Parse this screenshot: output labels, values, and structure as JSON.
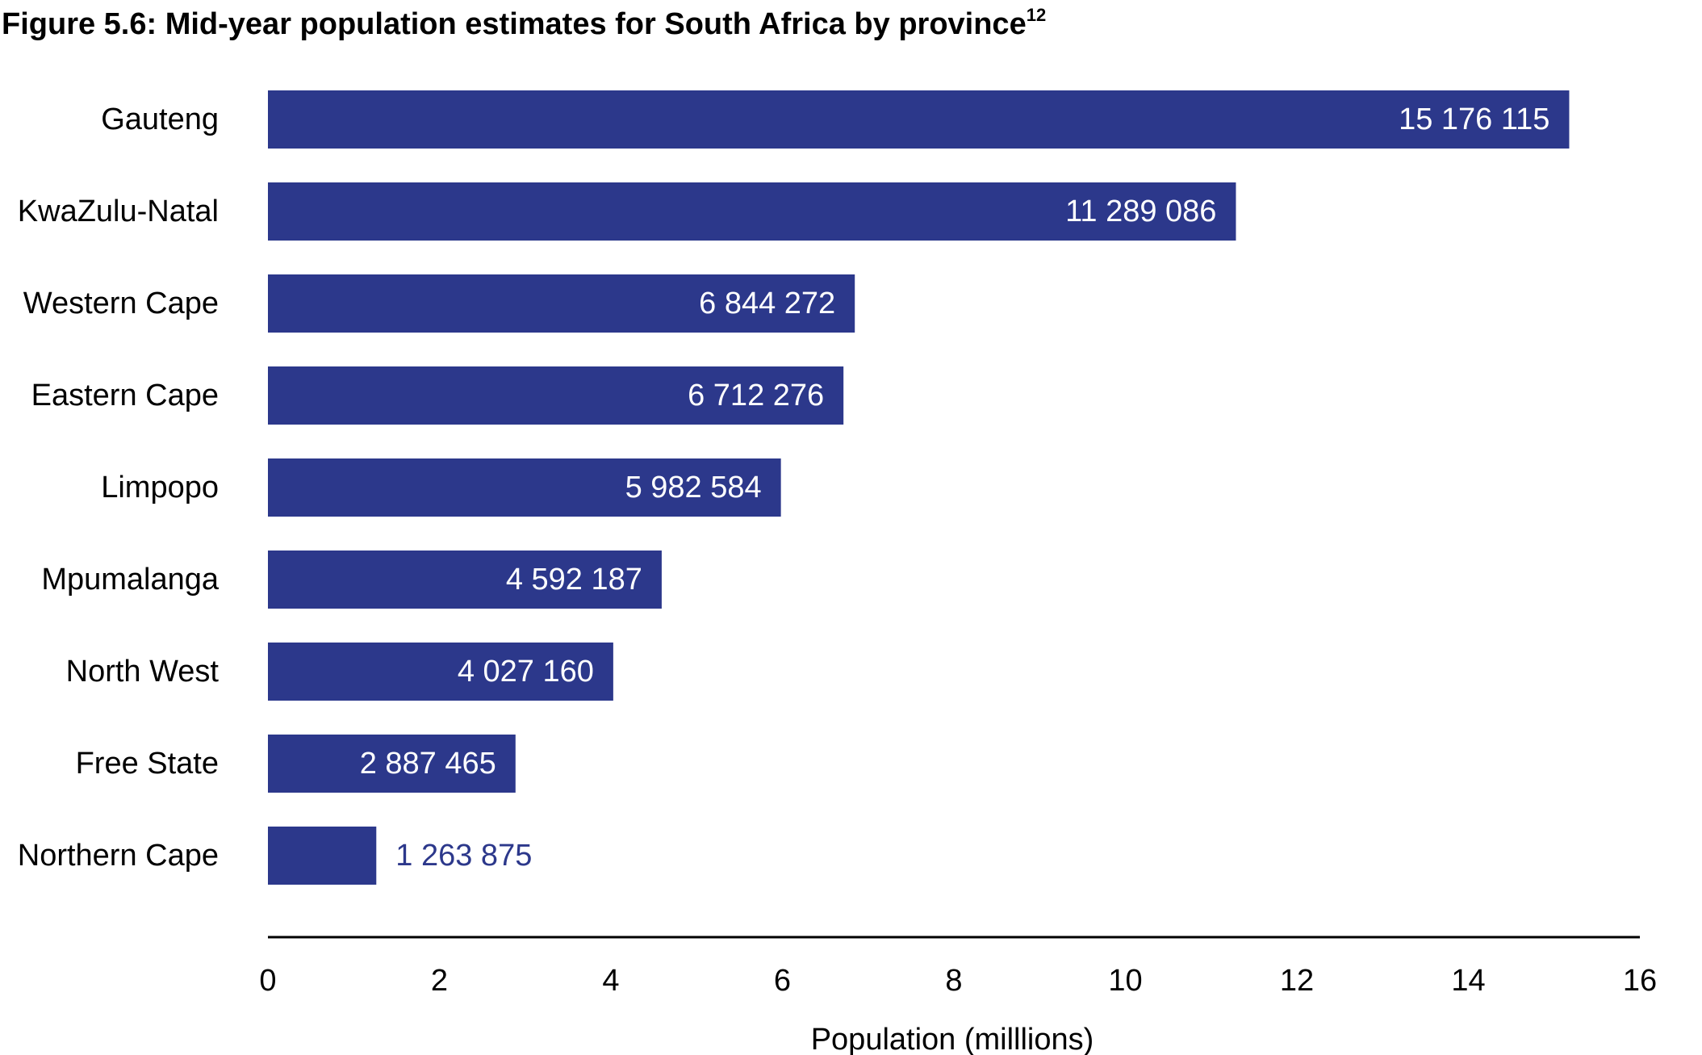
{
  "chart_data": {
    "type": "bar",
    "orientation": "horizontal",
    "title": "Figure 5.6: Mid-year population estimates for South Africa by province",
    "title_footnote": "12",
    "categories": [
      "Gauteng",
      "KwaZulu-Natal",
      "Western Cape",
      "Eastern Cape",
      "Limpopo",
      "Mpumalanga",
      "North West",
      "Free State",
      "Northern Cape"
    ],
    "values": [
      15.176115,
      11.289086,
      6.844272,
      6.712276,
      5.982584,
      4.592187,
      4.02716,
      2.887465,
      1.263875
    ],
    "value_labels": [
      "15 176 115",
      "11 289 086",
      "6 844 272",
      "6 712 276",
      "5 982 584",
      "4 592 187",
      "4 027 160",
      "2 887 465",
      "1 263 875"
    ],
    "color": "#2c388b",
    "xlabel": "Population (milllions)",
    "xlim": [
      0,
      16
    ],
    "xticks": [
      0,
      2,
      4,
      6,
      8,
      10,
      12,
      14,
      16
    ],
    "grid": false
  }
}
